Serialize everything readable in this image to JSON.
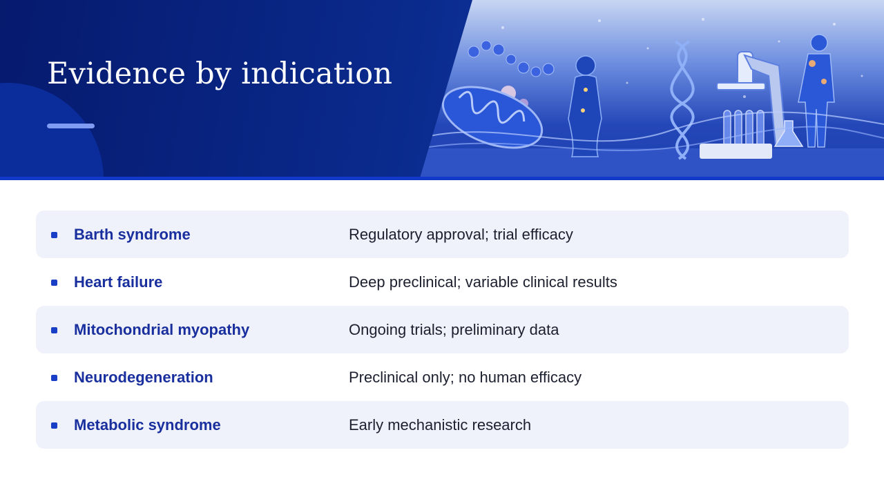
{
  "slide": {
    "title": "Evidence by indication"
  },
  "header_image": {
    "icon": "biomedical-illustration-icon",
    "subjects": [
      "molecule-chain",
      "mitochondrion",
      "human-figure",
      "dna-helix",
      "microscope",
      "test-tubes",
      "flask"
    ]
  },
  "colors": {
    "header_navy": "#061a6e",
    "accent_blue": "#1a3fc7",
    "label_blue": "#1a2f9e",
    "row_shade": "#eff2fb"
  },
  "rows": [
    {
      "label": "Barth syndrome",
      "description": "Regulatory approval; trial efficacy"
    },
    {
      "label": "Heart failure",
      "description": "Deep preclinical; variable clinical results"
    },
    {
      "label": "Mitochondrial myopathy",
      "description": "Ongoing trials; preliminary data"
    },
    {
      "label": "Neurodegeneration",
      "description": "Preclinical only; no human efficacy"
    },
    {
      "label": "Metabolic syndrome",
      "description": "Early mechanistic research"
    }
  ]
}
